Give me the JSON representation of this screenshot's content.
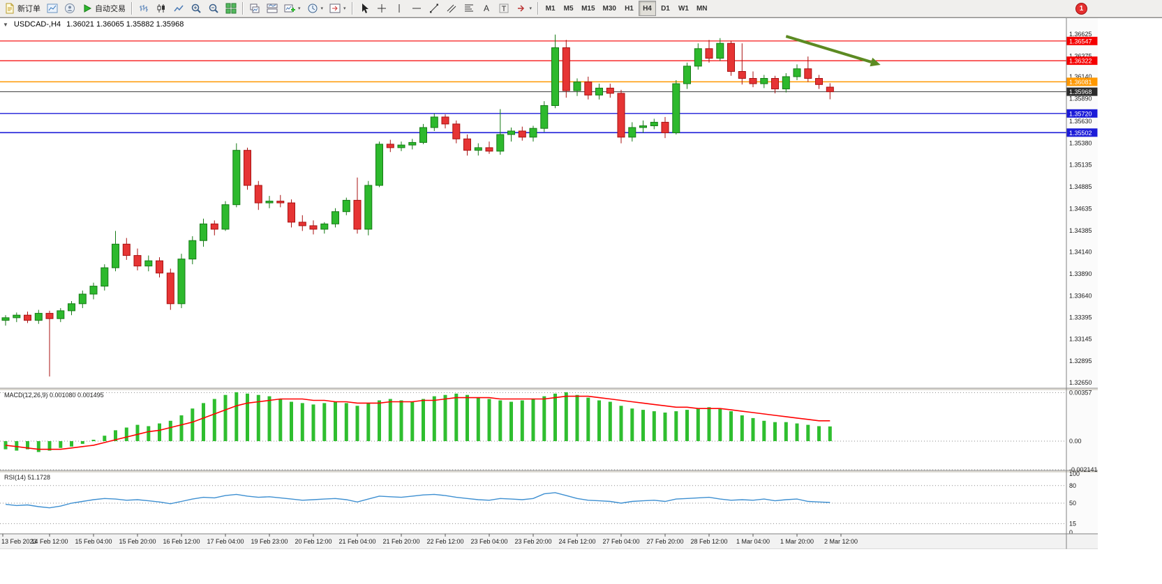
{
  "toolbar": {
    "new_order_label": "新订单",
    "auto_trading_label": "自动交易",
    "timeframes": [
      "M1",
      "M5",
      "M15",
      "M30",
      "H1",
      "H4",
      "D1",
      "W1",
      "MN"
    ],
    "active_timeframe": "H4",
    "notification_count": "1"
  },
  "chart": {
    "symbol_title": "USDCAD-,H4",
    "ohlc_text": "1.36021 1.36065 1.35882 1.35968"
  },
  "indicators": {
    "macd_label": "MACD(12,26,9) 0.001080 0.001495",
    "rsi_label": "RSI(14) 51.1728"
  },
  "chart_data": {
    "type": "candlestick",
    "symbol": "USDCAD-",
    "timeframe": "H4",
    "current_ohlc": {
      "open": 1.36021,
      "high": 1.36065,
      "low": 1.35882,
      "close": 1.35968
    },
    "style": {
      "bull": "#2db92d",
      "bull_border": "#157a15",
      "bear": "#e63434",
      "bear_border": "#a81111"
    },
    "candles": [
      [
        1.3336,
        1.3342,
        1.333,
        1.3339
      ],
      [
        1.3339,
        1.3345,
        1.3334,
        1.3342
      ],
      [
        1.3342,
        1.3346,
        1.3333,
        1.3336
      ],
      [
        1.3336,
        1.3348,
        1.3332,
        1.3344
      ],
      [
        1.3344,
        1.3347,
        1.3272,
        1.3338
      ],
      [
        1.3338,
        1.335,
        1.3334,
        1.3347
      ],
      [
        1.3347,
        1.3358,
        1.3342,
        1.3355
      ],
      [
        1.3355,
        1.337,
        1.335,
        1.3366
      ],
      [
        1.3366,
        1.3379,
        1.336,
        1.3375
      ],
      [
        1.3375,
        1.34,
        1.337,
        1.3396
      ],
      [
        1.3396,
        1.3438,
        1.3392,
        1.3423
      ],
      [
        1.3423,
        1.343,
        1.3405,
        1.341
      ],
      [
        1.341,
        1.3418,
        1.3393,
        1.3398
      ],
      [
        1.3398,
        1.341,
        1.3392,
        1.3404
      ],
      [
        1.3404,
        1.3408,
        1.3385,
        1.339
      ],
      [
        1.339,
        1.3395,
        1.3348,
        1.3355
      ],
      [
        1.3355,
        1.3412,
        1.335,
        1.3406
      ],
      [
        1.3406,
        1.3432,
        1.34,
        1.3427
      ],
      [
        1.3427,
        1.3452,
        1.342,
        1.3446
      ],
      [
        1.3446,
        1.345,
        1.3433,
        1.344
      ],
      [
        1.344,
        1.3472,
        1.3438,
        1.3468
      ],
      [
        1.3468,
        1.3538,
        1.3465,
        1.353
      ],
      [
        1.353,
        1.3533,
        1.3485,
        1.349
      ],
      [
        1.349,
        1.3495,
        1.3462,
        1.347
      ],
      [
        1.347,
        1.3478,
        1.3464,
        1.3472
      ],
      [
        1.3472,
        1.3479,
        1.3465,
        1.347
      ],
      [
        1.347,
        1.3474,
        1.3442,
        1.3448
      ],
      [
        1.3448,
        1.3456,
        1.3438,
        1.3444
      ],
      [
        1.3444,
        1.345,
        1.3434,
        1.344
      ],
      [
        1.344,
        1.3448,
        1.3435,
        1.3446
      ],
      [
        1.3446,
        1.3464,
        1.3442,
        1.346
      ],
      [
        1.346,
        1.3476,
        1.3456,
        1.3473
      ],
      [
        1.3473,
        1.3499,
        1.3435,
        1.344
      ],
      [
        1.344,
        1.3495,
        1.3433,
        1.349
      ],
      [
        1.349,
        1.354,
        1.3488,
        1.3537
      ],
      [
        1.3537,
        1.3542,
        1.3528,
        1.3533
      ],
      [
        1.3533,
        1.354,
        1.3529,
        1.3536
      ],
      [
        1.3536,
        1.3543,
        1.3531,
        1.3539
      ],
      [
        1.3539,
        1.356,
        1.3537,
        1.3556
      ],
      [
        1.3556,
        1.3572,
        1.3552,
        1.3568
      ],
      [
        1.3568,
        1.3571,
        1.3555,
        1.356
      ],
      [
        1.356,
        1.3564,
        1.3538,
        1.3543
      ],
      [
        1.3543,
        1.3548,
        1.3524,
        1.353
      ],
      [
        1.353,
        1.3538,
        1.3524,
        1.3533
      ],
      [
        1.3533,
        1.354,
        1.3526,
        1.3529
      ],
      [
        1.3529,
        1.3577,
        1.3525,
        1.3548
      ],
      [
        1.3548,
        1.3556,
        1.354,
        1.3552
      ],
      [
        1.3552,
        1.3557,
        1.3541,
        1.3545
      ],
      [
        1.3545,
        1.3558,
        1.354,
        1.3555
      ],
      [
        1.3555,
        1.3586,
        1.3551,
        1.3581
      ],
      [
        1.3581,
        1.3662,
        1.3578,
        1.3647
      ],
      [
        1.3647,
        1.3656,
        1.359,
        1.3598
      ],
      [
        1.3598,
        1.3612,
        1.3592,
        1.3608
      ],
      [
        1.3608,
        1.3614,
        1.3588,
        1.3593
      ],
      [
        1.3593,
        1.3606,
        1.3588,
        1.3601
      ],
      [
        1.3601,
        1.3606,
        1.359,
        1.3595
      ],
      [
        1.3595,
        1.3599,
        1.3538,
        1.3545
      ],
      [
        1.3545,
        1.3562,
        1.354,
        1.3556
      ],
      [
        1.3556,
        1.3564,
        1.355,
        1.3558
      ],
      [
        1.3558,
        1.3566,
        1.3554,
        1.3562
      ],
      [
        1.3562,
        1.3568,
        1.3544,
        1.355
      ],
      [
        1.355,
        1.361,
        1.3548,
        1.3606
      ],
      [
        1.3606,
        1.363,
        1.36,
        1.3626
      ],
      [
        1.3626,
        1.3652,
        1.3622,
        1.3646
      ],
      [
        1.3646,
        1.3656,
        1.363,
        1.3635
      ],
      [
        1.3635,
        1.3658,
        1.3632,
        1.3652
      ],
      [
        1.3652,
        1.3655,
        1.3615,
        1.362
      ],
      [
        1.362,
        1.3652,
        1.3605,
        1.3612
      ],
      [
        1.3612,
        1.362,
        1.3602,
        1.3606
      ],
      [
        1.3606,
        1.3616,
        1.3601,
        1.3612
      ],
      [
        1.3612,
        1.3615,
        1.3595,
        1.36
      ],
      [
        1.36,
        1.3618,
        1.3596,
        1.3614
      ],
      [
        1.3614,
        1.3628,
        1.361,
        1.3623
      ],
      [
        1.3623,
        1.3637,
        1.3608,
        1.3612
      ],
      [
        1.3612,
        1.3616,
        1.36,
        1.3605
      ],
      [
        1.36021,
        1.36065,
        1.35882,
        1.35968
      ]
    ],
    "price_axis_labels": [
      "1.36625",
      "1.36375",
      "1.36140",
      "1.35890",
      "1.35630",
      "1.35380",
      "1.35135",
      "1.34885",
      "1.34635",
      "1.34385",
      "1.34140",
      "1.33890",
      "1.33640",
      "1.33395",
      "1.33145",
      "1.32895",
      "1.32650"
    ],
    "levels": [
      {
        "price": 1.36547,
        "label": "1.36547",
        "color": "#f50000",
        "width": 1.2
      },
      {
        "price": 1.36322,
        "label": "1.36322",
        "color": "#f50000",
        "width": 1.2
      },
      {
        "price": 1.36081,
        "label": "1.36081",
        "color": "#ff9800",
        "width": 1.5
      },
      {
        "price": 1.35968,
        "label": "1.35968",
        "color": "#3c3c3c",
        "width": 1,
        "tag_bg": "#2b2b2b"
      },
      {
        "price": 1.3572,
        "label": "1.35720",
        "color": "#1c1cd8",
        "width": 1.3
      },
      {
        "price": 1.35502,
        "label": "1.35502",
        "color": "#1c1cd8",
        "width": 1.6
      }
    ],
    "arrow": {
      "color": "#5c8a22",
      "width": 4,
      "from": {
        "bar": 71,
        "price": 1.366
      },
      "to": {
        "bar": 79.6,
        "price": 1.36275
      }
    },
    "macd": {
      "histogram_color": "#2fbe2f",
      "signal_color": "#ff0000",
      "axis": [
        {
          "label": "0.00357",
          "value": 0.00357
        },
        {
          "label": "0.00",
          "value": 0
        },
        {
          "label": "-0.002141",
          "value": -0.002141
        }
      ],
      "values": [
        -0.0006,
        -0.0007,
        -0.0006,
        -0.0008,
        -0.0007,
        -0.0005,
        -0.0004,
        -0.0002,
        0.0001,
        0.0004,
        0.0008,
        0.001,
        0.0012,
        0.0011,
        0.0013,
        0.0015,
        0.0019,
        0.0024,
        0.0028,
        0.0031,
        0.0034,
        0.0036,
        0.0035,
        0.0034,
        0.0033,
        0.0031,
        0.0029,
        0.0028,
        0.0027,
        0.0028,
        0.0029,
        0.0028,
        0.0026,
        0.0028,
        0.003,
        0.0031,
        0.003,
        0.0029,
        0.0031,
        0.0033,
        0.0034,
        0.0035,
        0.0034,
        0.0032,
        0.0031,
        0.003,
        0.0029,
        0.003,
        0.0031,
        0.0033,
        0.0035,
        0.0036,
        0.0034,
        0.0032,
        0.003,
        0.0029,
        0.0026,
        0.0024,
        0.0023,
        0.0022,
        0.0021,
        0.0022,
        0.0023,
        0.0024,
        0.0025,
        0.0024,
        0.0022,
        0.0019,
        0.0017,
        0.0015,
        0.0014,
        0.0014,
        0.0013,
        0.0012,
        0.0011,
        0.00108
      ],
      "signal": [
        -0.0003,
        -0.0004,
        -0.0005,
        -0.0006,
        -0.0006,
        -0.0006,
        -0.0005,
        -0.0004,
        -0.0003,
        -0.0001,
        0.0001,
        0.0003,
        0.0005,
        0.0007,
        0.0008,
        0.001,
        0.0012,
        0.0014,
        0.0017,
        0.002,
        0.0023,
        0.0026,
        0.0028,
        0.0029,
        0.003,
        0.0031,
        0.0031,
        0.0031,
        0.003,
        0.003,
        0.0029,
        0.0029,
        0.0028,
        0.0028,
        0.0028,
        0.0029,
        0.0029,
        0.0029,
        0.003,
        0.003,
        0.0031,
        0.0032,
        0.0032,
        0.0032,
        0.0032,
        0.0031,
        0.0031,
        0.0031,
        0.0031,
        0.0031,
        0.0032,
        0.0033,
        0.0033,
        0.0033,
        0.0032,
        0.0031,
        0.003,
        0.0029,
        0.0028,
        0.0027,
        0.0026,
        0.0025,
        0.0025,
        0.0024,
        0.0024,
        0.0024,
        0.0023,
        0.0022,
        0.0021,
        0.002,
        0.0019,
        0.0018,
        0.0017,
        0.0016,
        0.0015,
        0.001495
      ]
    },
    "rsi": {
      "line_color": "#3d8fd1",
      "axis": [
        {
          "label": "100",
          "value": 100
        },
        {
          "label": "80",
          "value": 80
        },
        {
          "label": "50",
          "value": 50
        },
        {
          "label": "15",
          "value": 15
        },
        {
          "label": "0",
          "value": 0
        }
      ],
      "guide_levels": [
        80,
        50,
        15
      ],
      "values": [
        48,
        46,
        47,
        44,
        42,
        45,
        50,
        53,
        56,
        58,
        57,
        55,
        56,
        54,
        52,
        49,
        53,
        57,
        60,
        59,
        63,
        65,
        62,
        60,
        61,
        59,
        57,
        55,
        56,
        57,
        58,
        56,
        52,
        57,
        62,
        61,
        60,
        62,
        64,
        65,
        63,
        60,
        58,
        56,
        55,
        58,
        57,
        56,
        58,
        66,
        68,
        63,
        58,
        55,
        54,
        53,
        50,
        53,
        54,
        55,
        53,
        57,
        58,
        59,
        60,
        57,
        55,
        56,
        55,
        57,
        54,
        56,
        57,
        53,
        52,
        51.17
      ]
    },
    "time_axis_labels": [
      "13 Feb 2023",
      "14 Feb 12:00",
      "15 Feb 04:00",
      "15 Feb 20:00",
      "16 Feb 12:00",
      "17 Feb 04:00",
      "19 Feb 23:00",
      "20 Feb 12:00",
      "21 Feb 04:00",
      "21 Feb 20:00",
      "22 Feb 12:00",
      "23 Feb 04:00",
      "23 Feb 20:00",
      "24 Feb 12:00",
      "27 Feb 04:00",
      "27 Feb 20:00",
      "28 Feb 12:00",
      "1 Mar 04:00",
      "1 Mar 20:00",
      "2 Mar 12:00"
    ]
  }
}
